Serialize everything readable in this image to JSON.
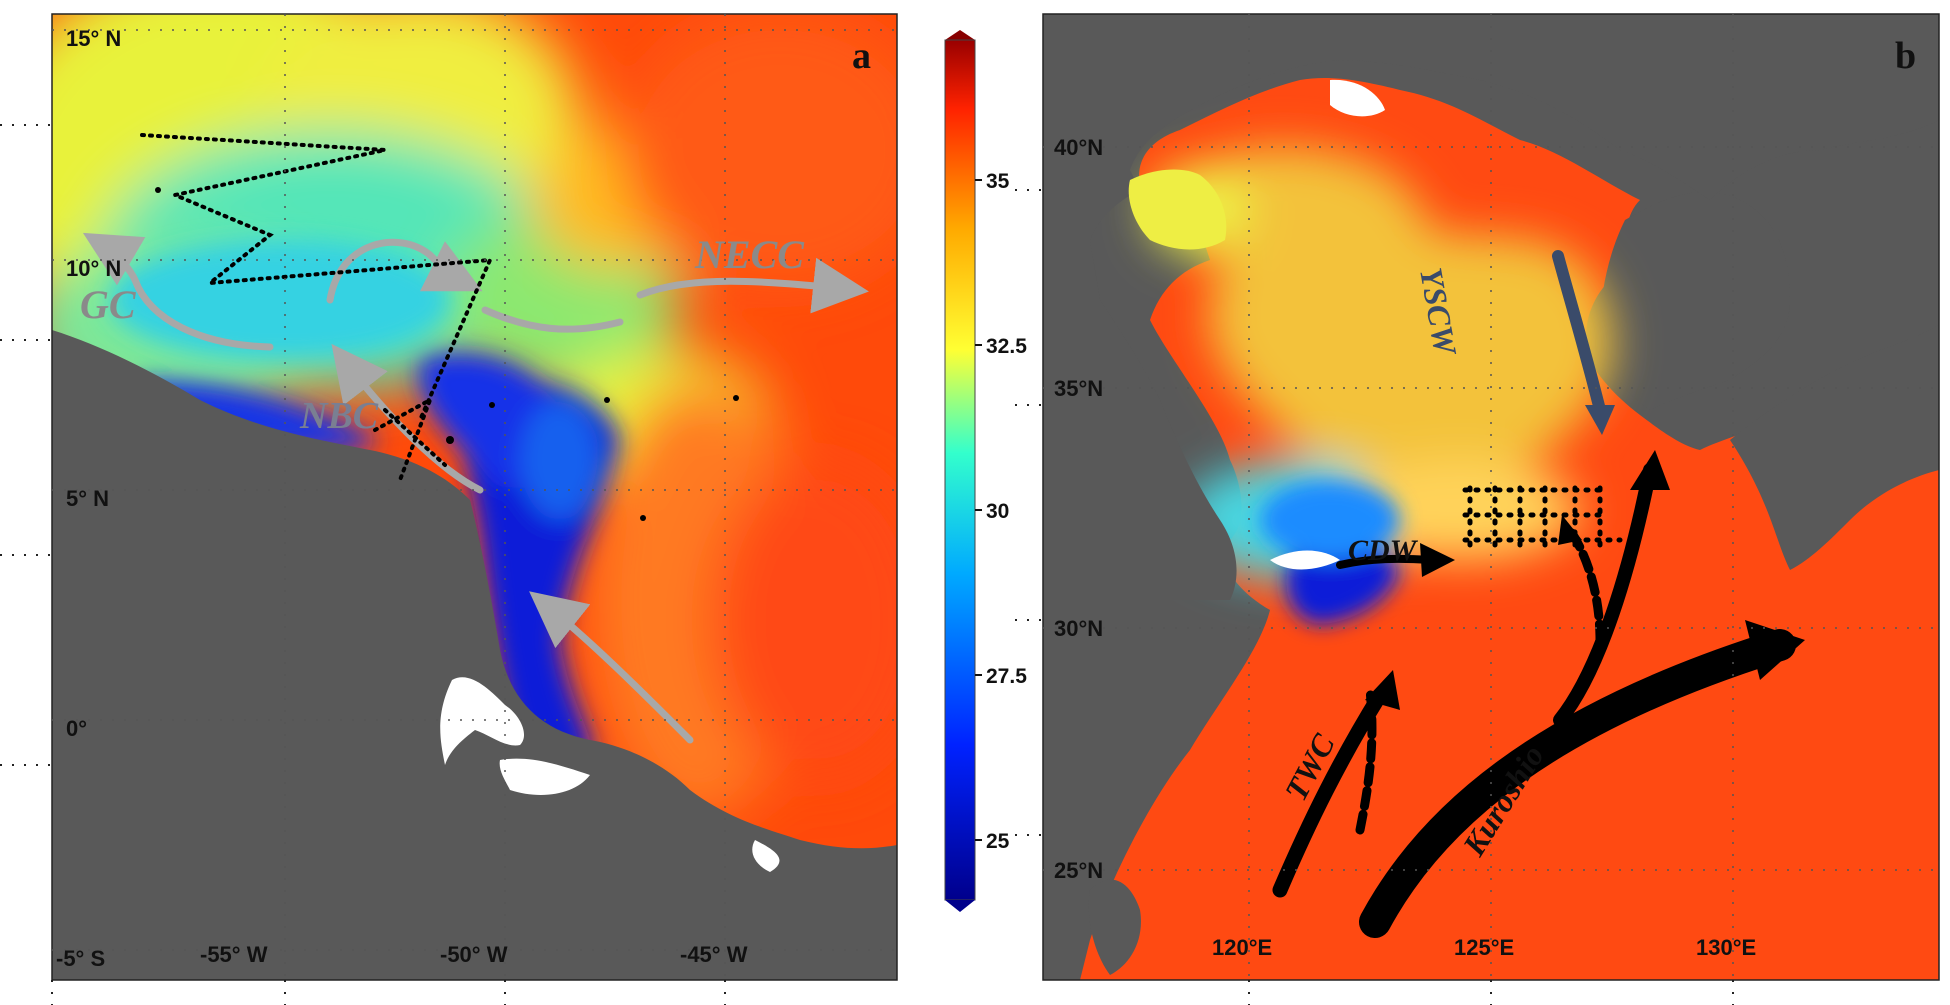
{
  "panel_a": {
    "letter": "a",
    "lat_ticks": [
      "15° N",
      "10° N",
      "5° N",
      "0°",
      "-5° S"
    ],
    "lon_ticks": [
      "-55° W",
      "-50° W",
      "-45° W"
    ],
    "currents": [
      "GC",
      "NBC",
      "NECC"
    ]
  },
  "panel_b": {
    "letter": "b",
    "lat_ticks": [
      "40°N",
      "35°N",
      "30°N",
      "25°N"
    ],
    "lon_ticks": [
      "120°E",
      "125°E",
      "130°E"
    ],
    "currents": [
      "YSCW",
      "CDW",
      "TWC",
      "Kuroshio"
    ]
  },
  "colorbar": {
    "ticks": [
      "35",
      "32.5",
      "30",
      "27.5",
      "25"
    ],
    "colors": [
      "#0000aa",
      "#0033ff",
      "#00aaff",
      "#33ffcc",
      "#ffff33",
      "#ffaa00",
      "#ff3300",
      "#880000"
    ]
  },
  "colors": {
    "land": "#595959",
    "grid_dot": "#555555",
    "arrow_grey": "#a8a8a8",
    "arrow_black": "#000000",
    "arrow_navy": "#3a4b6a"
  }
}
